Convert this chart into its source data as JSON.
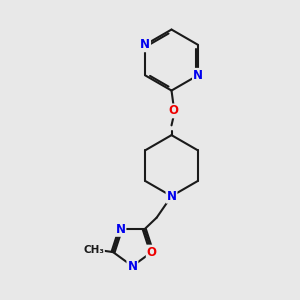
{
  "background_color": "#e8e8e8",
  "bond_color": "#1a1a1a",
  "bond_width": 1.5,
  "atom_colors": {
    "N": "#0000ee",
    "O": "#ee0000",
    "C": "#1a1a1a"
  },
  "font_size_atom": 8.5
}
